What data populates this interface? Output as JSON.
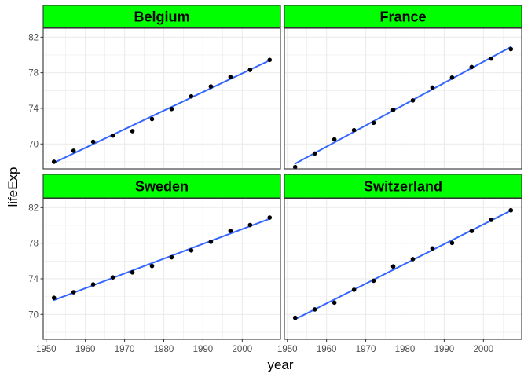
{
  "chart_data": {
    "type": "scatter",
    "layout": "facet_wrap 2x2",
    "xlabel": "year",
    "ylabel": "lifeExp",
    "xlim": [
      1949.25,
      2009.75
    ],
    "ylim": [
      67.2,
      83.0
    ],
    "x_ticks": [
      1950,
      1960,
      1970,
      1980,
      1990,
      2000
    ],
    "y_ticks": [
      70,
      74,
      78,
      82
    ],
    "grid": true,
    "trend": "linear fit line per panel",
    "colors": {
      "strip_fill": "#00ff00",
      "points": "#000000",
      "fit_line": "#3366ff",
      "grid": "#ebebeb",
      "axis_text": "#4d4d4d"
    },
    "panels": [
      {
        "label": "Belgium",
        "x": [
          1952,
          1957,
          1962,
          1967,
          1972,
          1977,
          1982,
          1987,
          1992,
          1997,
          2002,
          2007
        ],
        "y": [
          68.0,
          69.24,
          70.25,
          70.94,
          71.44,
          72.8,
          73.93,
          75.35,
          76.46,
          77.53,
          78.32,
          79.44
        ]
      },
      {
        "label": "France",
        "x": [
          1952,
          1957,
          1962,
          1967,
          1972,
          1977,
          1982,
          1987,
          1992,
          1997,
          2002,
          2007
        ],
        "y": [
          67.41,
          68.93,
          70.51,
          71.55,
          72.38,
          73.83,
          74.89,
          76.34,
          77.46,
          78.64,
          79.59,
          80.66
        ]
      },
      {
        "label": "Sweden",
        "x": [
          1952,
          1957,
          1962,
          1967,
          1972,
          1977,
          1982,
          1987,
          1992,
          1997,
          2002,
          2007
        ],
        "y": [
          71.86,
          72.49,
          73.37,
          74.16,
          74.72,
          75.44,
          76.42,
          77.19,
          78.16,
          79.39,
          80.04,
          80.88
        ]
      },
      {
        "label": "Switzerland",
        "x": [
          1952,
          1957,
          1962,
          1967,
          1972,
          1977,
          1982,
          1987,
          1992,
          1997,
          2002,
          2007
        ],
        "y": [
          69.62,
          70.56,
          71.32,
          72.77,
          73.78,
          75.39,
          76.21,
          77.41,
          78.03,
          79.37,
          80.62,
          81.7
        ]
      }
    ]
  }
}
